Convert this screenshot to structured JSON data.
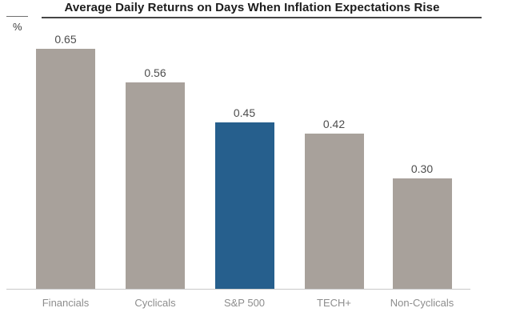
{
  "chart_data": {
    "type": "bar",
    "title": "Average Daily Returns on Days When Inflation Expectations Rise",
    "unit_label": "%",
    "categories": [
      "Financials",
      "Cyclicals",
      "S&P 500",
      "TECH+",
      "Non-Cyclicals"
    ],
    "values": [
      0.65,
      0.56,
      0.45,
      0.42,
      0.3
    ],
    "value_labels": [
      "0.65",
      "0.56",
      "0.45",
      "0.42",
      "0.30"
    ],
    "highlight_index": 2,
    "bar_color": "#a8a19b",
    "highlight_color": "#265f8d",
    "xlabel": "",
    "ylabel": "%",
    "ylim": [
      0,
      0.7
    ],
    "grid": false,
    "legend_position": "none"
  }
}
